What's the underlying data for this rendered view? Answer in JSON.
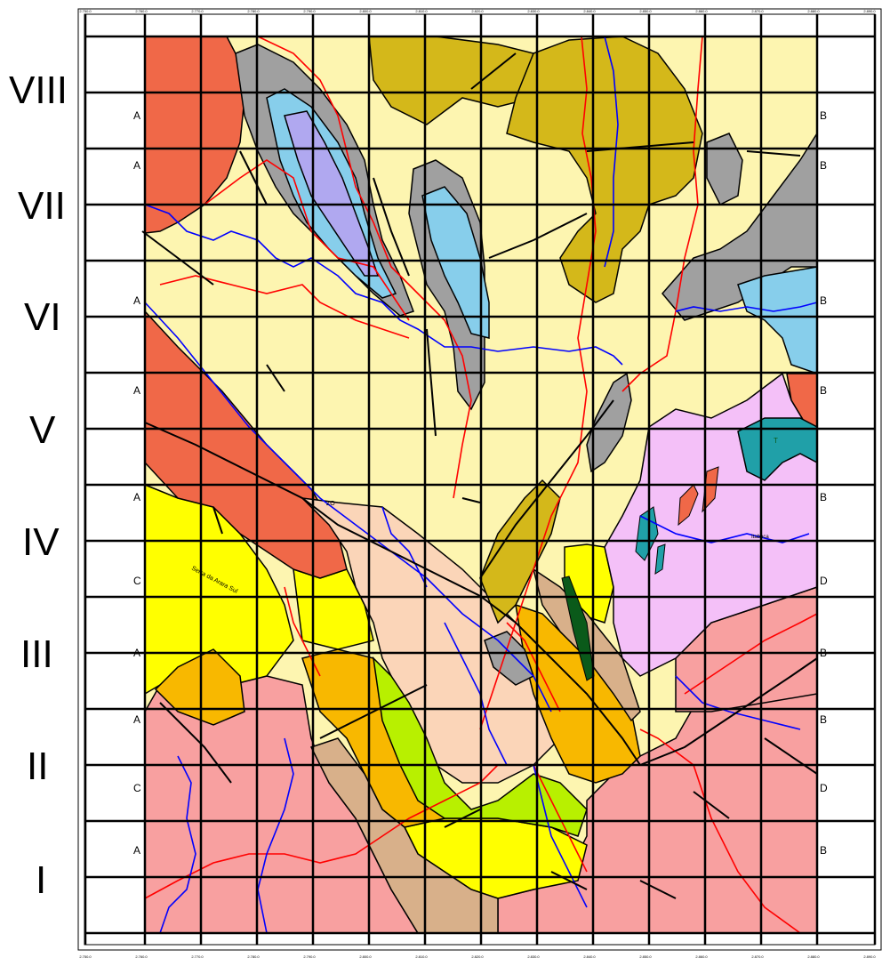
{
  "map": {
    "row_labels": [
      "VIII",
      "VII",
      "VI",
      "V",
      "IV",
      "III",
      "II",
      "I"
    ],
    "section_lines": [
      {
        "left": "A",
        "right": "B"
      },
      {
        "left": "A",
        "right": "B"
      },
      {
        "left": "A",
        "right": "B"
      },
      {
        "left": "A",
        "right": "B"
      },
      {
        "left": "A",
        "right": "B"
      },
      {
        "left": "C",
        "right": "D"
      },
      {
        "left": "A",
        "right": "B"
      },
      {
        "left": "A",
        "right": "B"
      },
      {
        "left": "C",
        "right": "D"
      },
      {
        "left": "A",
        "right": "B"
      }
    ],
    "x_ticks": [
      "2.750.0",
      "2.760.0",
      "2.770.0",
      "2.780.0",
      "2.790.0",
      "2.800.0",
      "2.810.0",
      "2.820.0",
      "2.830.0",
      "2.840.0",
      "2.850.0",
      "2.860.0",
      "2.870.0",
      "2.880.0",
      "2.890.0",
      "2.900.0"
    ],
    "place_labels": [
      "Serra da Arara Sul",
      "ZO",
      "Itaboca",
      "T"
    ],
    "colors": {
      "background": "#ffffff",
      "cream": "#fdf5b0",
      "olive": "#d4b81a",
      "gray": "#a0a0a0",
      "light_blue": "#87ceeb",
      "lavender": "#b0a8f0",
      "orange_red": "#f06848",
      "pink": "#f8a0a0",
      "peach": "#fbd5b8",
      "yellow": "#ffff00",
      "orange": "#f8b800",
      "lime": "#b8f000",
      "tan": "#d8b08a",
      "light_violet": "#f4c0f8",
      "teal": "#20a0a8",
      "dark_green": "#0a5a1a",
      "river": "#0000ff",
      "road": "#ff0000",
      "grid": "#000000"
    }
  }
}
